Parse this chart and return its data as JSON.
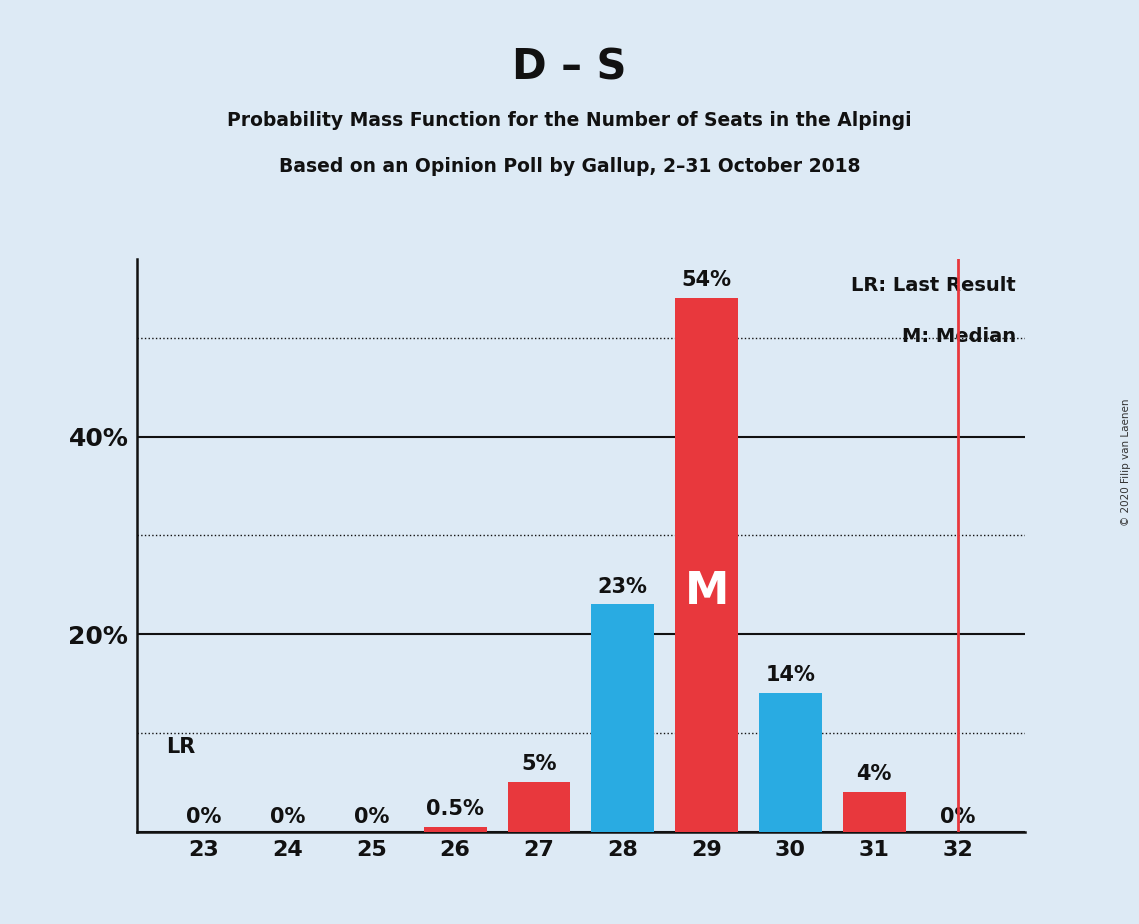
{
  "title": "D – S",
  "subtitle1": "Probability Mass Function for the Number of Seats in the Alpingi",
  "subtitle2": "Based on an Opinion Poll by Gallup, 2–31 October 2018",
  "copyright": "© 2020 Filip van Laenen",
  "seats": [
    23,
    24,
    25,
    26,
    27,
    28,
    29,
    30,
    31,
    32
  ],
  "values": [
    0.0,
    0.0,
    0.0,
    0.5,
    5.0,
    23.0,
    54.0,
    14.0,
    4.0,
    0.0
  ],
  "bar_colors": [
    "#e8383d",
    "#e8383d",
    "#e8383d",
    "#e8383d",
    "#e8383d",
    "#29abe2",
    "#e8383d",
    "#29abe2",
    "#e8383d",
    "#e8383d"
  ],
  "labels": [
    "0%",
    "0%",
    "0%",
    "0.5%",
    "5%",
    "23%",
    "54%",
    "14%",
    "4%",
    "0%"
  ],
  "show_label": [
    true,
    true,
    true,
    true,
    true,
    true,
    true,
    true,
    true,
    true
  ],
  "median_seat": 29,
  "last_result_seat": 32,
  "background_color": "#ddeaf5",
  "ytick_solid": [
    0,
    20,
    40
  ],
  "ytick_dotted": [
    10,
    30,
    50
  ],
  "ytick_labels": [
    20,
    40
  ],
  "ylim": [
    0,
    58
  ],
  "legend_lr": "LR: Last Result",
  "legend_m": "M: Median",
  "lr_label": "LR",
  "bar_width": 0.75
}
